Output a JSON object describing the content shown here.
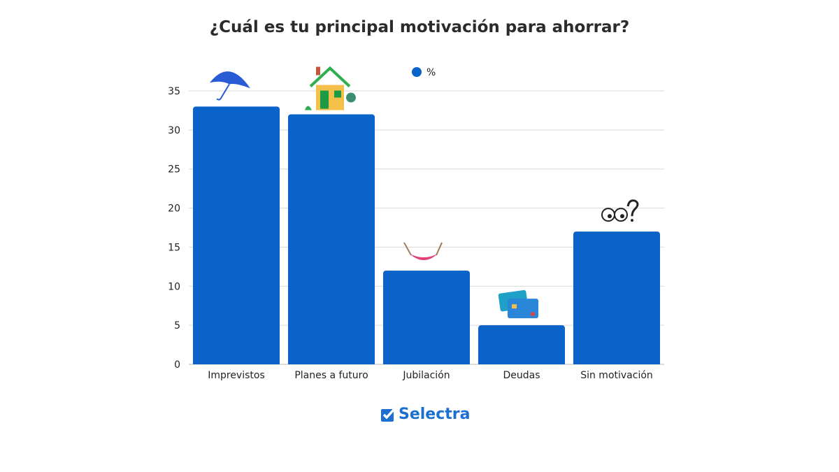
{
  "chart_data": {
    "type": "bar",
    "title": "¿Cuál es tu principal motivación para ahorrar?",
    "categories": [
      "Imprevistos",
      "Planes a futuro",
      "Jubilación",
      "Deudas",
      "Sin motivación"
    ],
    "series": [
      {
        "name": "%",
        "values": [
          33,
          32,
          12,
          5,
          17
        ],
        "color": "#0a63c9"
      }
    ],
    "icons": [
      "umbrella-icon",
      "house-icon",
      "hammock-icon",
      "credit-cards-icon",
      "confused-eyes-icon"
    ],
    "ylim": [
      0,
      35
    ],
    "yticks": [
      0,
      5,
      10,
      15,
      20,
      25,
      30,
      35
    ],
    "grid": true,
    "legend": "top-center",
    "xlabel": "",
    "ylabel": ""
  },
  "brand": {
    "name": "Selectra",
    "color": "#1a6fd1"
  }
}
